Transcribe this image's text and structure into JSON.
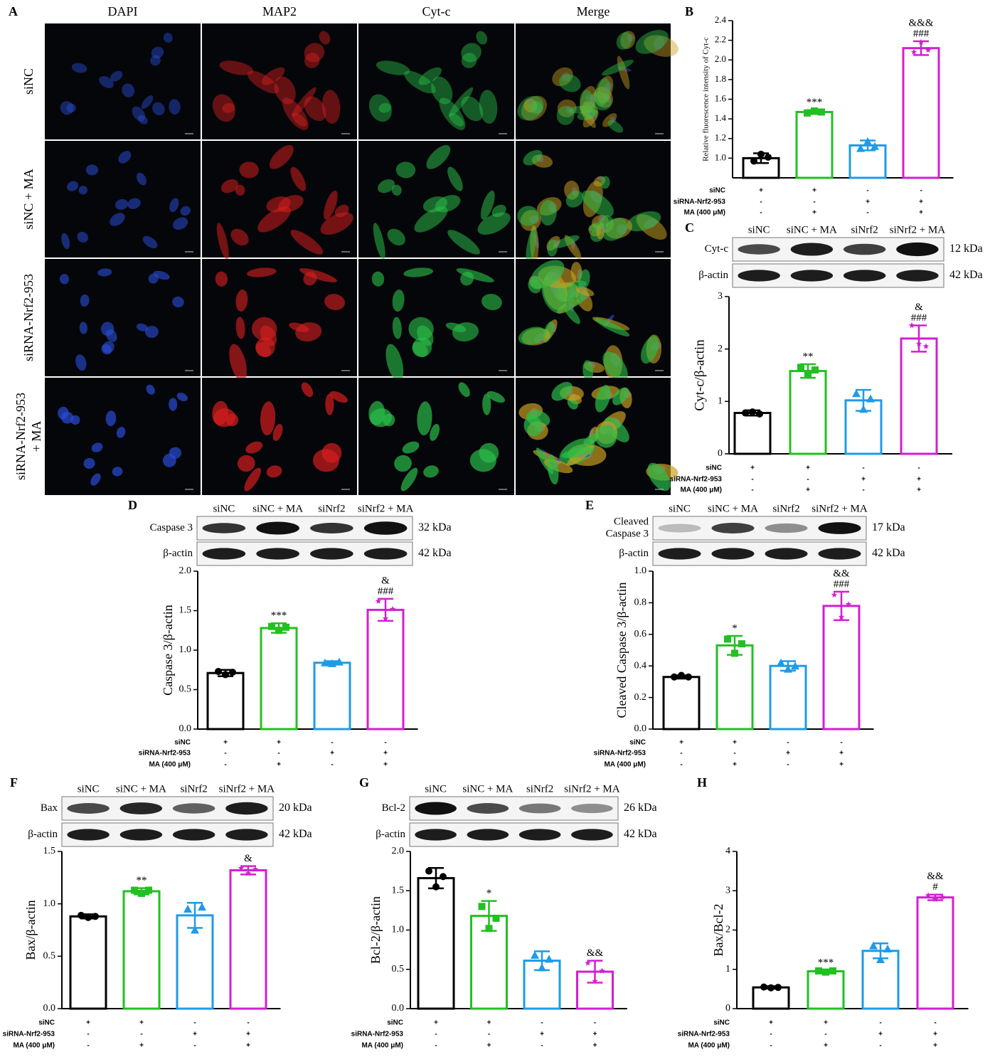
{
  "panel_a": {
    "label": "A",
    "columns": [
      "DAPI",
      "MAP2",
      "Cyt-c",
      "Merge"
    ],
    "rows": [
      [
        "siNC"
      ],
      [
        "siNC + MA"
      ],
      [
        "siRNA-Nrf2-953"
      ],
      [
        "siRNA-Nrf2-953",
        "+ MA"
      ]
    ]
  },
  "chart_data": [
    {
      "type": "bar",
      "label": "B",
      "y_label": "Relative fluorescence intensity of Cyt-c",
      "colors": [
        "#000000",
        "#22c022",
        "#1e9be8",
        "#d21fd2"
      ],
      "values": [
        1.0,
        1.47,
        1.13,
        2.12
      ],
      "errors": [
        0.05,
        0.02,
        0.05,
        0.07
      ],
      "points": [
        [
          0.97,
          1.04,
          1.01
        ],
        [
          1.46,
          1.48,
          1.47
        ],
        [
          1.1,
          1.17,
          1.12
        ],
        [
          2.08,
          2.18,
          2.1
        ]
      ],
      "annotations": [
        [],
        [
          "***"
        ],
        [],
        [
          "&&&",
          "###"
        ]
      ],
      "ylim": [
        0.8,
        2.4
      ],
      "yticks": [
        {
          "value": 1.0,
          "label": "1.0"
        },
        1.2,
        1.4,
        1.6,
        1.8,
        {
          "value": 2.0,
          "label": "2.0"
        },
        2.2,
        2.4
      ],
      "conditions": [
        {
          "name": "siNC",
          "signs": [
            "+",
            "+",
            "-",
            "-"
          ]
        },
        {
          "name": "siRNA-Nrf2-953",
          "signs": [
            "-",
            "-",
            "+",
            "+"
          ]
        },
        {
          "name": "MA (400 μM)",
          "signs": [
            "-",
            "+",
            "-",
            "+"
          ]
        }
      ]
    },
    {
      "type": "bar",
      "label": "C",
      "y_label": "Cyt-c/β-actin",
      "colors": [
        "#000000",
        "#22c022",
        "#1e9be8",
        "#d21fd2"
      ],
      "values": [
        0.78,
        1.58,
        1.02,
        2.2
      ],
      "errors": [
        0.05,
        0.13,
        0.2,
        0.25
      ],
      "points": [
        [
          0.78,
          0.8,
          0.76
        ],
        [
          1.65,
          1.5,
          1.6
        ],
        [
          1.15,
          0.85,
          1.05
        ],
        [
          2.45,
          2.1,
          2.05
        ]
      ],
      "annotations": [
        [],
        [
          "**"
        ],
        [],
        [
          "&",
          "###"
        ]
      ],
      "ylim": [
        0,
        3
      ],
      "yticks": [
        0,
        1,
        2,
        3
      ],
      "conditions": [
        {
          "name": "siNC",
          "signs": [
            "+",
            "+",
            "-",
            "-"
          ]
        },
        {
          "name": "siRNA-Nrf2-953",
          "signs": [
            "-",
            "-",
            "+",
            "+"
          ]
        },
        {
          "name": "MA (400 μM)",
          "signs": [
            "-",
            "+",
            "-",
            "+"
          ]
        }
      ],
      "blot": {
        "lanes": [
          "siNC",
          "siNC + MA",
          "siNrf2",
          "siNrf2 + MA"
        ],
        "rows": [
          {
            "name": "Cyt-c",
            "kda": "12 kDa"
          },
          {
            "name": "β-actin",
            "kda": "42 kDa"
          }
        ]
      }
    },
    {
      "type": "bar",
      "label": "D",
      "y_label": "Caspase 3/β-actin",
      "colors": [
        "#000000",
        "#22c022",
        "#1e9be8",
        "#d21fd2"
      ],
      "values": [
        0.71,
        1.28,
        0.84,
        1.51
      ],
      "errors": [
        0.04,
        0.06,
        0.02,
        0.14
      ],
      "points": [
        [
          0.73,
          0.69,
          0.72
        ],
        [
          1.3,
          1.25,
          1.29
        ],
        [
          0.84,
          0.83,
          0.85
        ],
        [
          1.62,
          1.4,
          1.52
        ]
      ],
      "annotations": [
        [],
        [
          "***"
        ],
        [],
        [
          "&",
          "###"
        ]
      ],
      "ylim": [
        0,
        2
      ],
      "yticks": [
        {
          "value": 0,
          "label": "0.0"
        },
        0.5,
        {
          "value": 1,
          "label": "1.0"
        },
        1.5,
        {
          "value": 2,
          "label": "2.0"
        }
      ],
      "conditions": [
        {
          "name": "siNC",
          "signs": [
            "+",
            "+",
            "-",
            "-"
          ]
        },
        {
          "name": "siRNA-Nrf2-953",
          "signs": [
            "-",
            "-",
            "+",
            "+"
          ]
        },
        {
          "name": "MA (400 μM)",
          "signs": [
            "-",
            "+",
            "-",
            "+"
          ]
        }
      ],
      "blot": {
        "lanes": [
          "siNC",
          "siNC + MA",
          "siNrf2",
          "siNrf2 + MA"
        ],
        "rows": [
          {
            "name": "Caspase 3",
            "kda": "32 kDa"
          },
          {
            "name": "β-actin",
            "kda": "42 kDa"
          }
        ]
      }
    },
    {
      "type": "bar",
      "label": "E",
      "y_label": "Cleaved Caspase 3/β-actin",
      "colors": [
        "#000000",
        "#22c022",
        "#1e9be8",
        "#d21fd2"
      ],
      "values": [
        0.33,
        0.53,
        0.4,
        0.78
      ],
      "errors": [
        0.01,
        0.06,
        0.03,
        0.09
      ],
      "points": [
        [
          0.33,
          0.34,
          0.33
        ],
        [
          0.57,
          0.48,
          0.54
        ],
        [
          0.42,
          0.38,
          0.4
        ],
        [
          0.85,
          0.71,
          0.79
        ]
      ],
      "annotations": [
        [],
        [
          "*"
        ],
        [],
        [
          "&&",
          "###"
        ]
      ],
      "ylim": [
        0,
        1
      ],
      "yticks": [
        {
          "value": 0,
          "label": "0.0"
        },
        0.2,
        0.4,
        0.6,
        0.8,
        {
          "value": 1,
          "label": "1.0"
        }
      ],
      "conditions": [
        {
          "name": "siNC",
          "signs": [
            "+",
            "+",
            "-",
            "-"
          ]
        },
        {
          "name": "siRNA-Nrf2-953",
          "signs": [
            "-",
            "-",
            "+",
            "+"
          ]
        },
        {
          "name": "MA (400 μM)",
          "signs": [
            "-",
            "+",
            "-",
            "+"
          ]
        }
      ],
      "blot": {
        "lanes": [
          "siNC",
          "siNC + MA",
          "siNrf2",
          "siNrf2 + MA"
        ],
        "rows": [
          {
            "name": [
              "Cleaved",
              "Caspase 3"
            ],
            "kda": "17 kDa"
          },
          {
            "name": "β-actin",
            "kda": "42 kDa"
          }
        ]
      }
    },
    {
      "type": "bar",
      "label": "F",
      "y_label": "Bax/β-actin",
      "colors": [
        "#000000",
        "#22c022",
        "#1e9be8",
        "#d21fd2"
      ],
      "values": [
        0.88,
        1.12,
        0.89,
        1.32
      ],
      "errors": [
        0.02,
        0.03,
        0.12,
        0.04
      ],
      "points": [
        [
          0.89,
          0.87,
          0.88
        ],
        [
          1.13,
          1.1,
          1.13
        ],
        [
          0.95,
          0.75,
          0.97
        ],
        [
          1.34,
          1.29,
          1.33
        ]
      ],
      "annotations": [
        [],
        [
          "**"
        ],
        [],
        [
          "&"
        ]
      ],
      "ylim": [
        0,
        1.5
      ],
      "yticks": [
        {
          "value": 0,
          "label": "0.0"
        },
        0.5,
        {
          "value": 1,
          "label": "1.0"
        },
        1.5
      ],
      "conditions": [
        {
          "name": "siNC",
          "signs": [
            "+",
            "+",
            "-",
            "-"
          ]
        },
        {
          "name": "siRNA-Nrf2-953",
          "signs": [
            "-",
            "-",
            "+",
            "+"
          ]
        },
        {
          "name": "MA (400 μM)",
          "signs": [
            "-",
            "+",
            "-",
            "+"
          ]
        }
      ],
      "blot": {
        "lanes": [
          "siNC",
          "siNC + MA",
          "siNrf2",
          "siNrf2 + MA"
        ],
        "rows": [
          {
            "name": "Bax",
            "kda": "20 kDa"
          },
          {
            "name": "β-actin",
            "kda": "42 kDa"
          }
        ]
      }
    },
    {
      "type": "bar",
      "label": "G",
      "y_label": "Bcl-2/β-actin",
      "colors": [
        "#000000",
        "#22c022",
        "#1e9be8",
        "#d21fd2"
      ],
      "values": [
        1.66,
        1.18,
        0.61,
        0.47
      ],
      "errors": [
        0.13,
        0.19,
        0.12,
        0.14
      ],
      "points": [
        [
          1.75,
          1.55,
          1.68
        ],
        [
          1.3,
          1.02,
          1.15
        ],
        [
          0.68,
          0.52,
          0.63
        ],
        [
          0.58,
          0.35,
          0.48
        ]
      ],
      "annotations": [
        [],
        [
          "*"
        ],
        [],
        [
          "&&"
        ]
      ],
      "ylim": [
        0,
        2
      ],
      "yticks": [
        {
          "value": 0,
          "label": "0.0"
        },
        0.5,
        {
          "value": 1,
          "label": "1.0"
        },
        1.5,
        {
          "value": 2,
          "label": "2.0"
        }
      ],
      "conditions": [
        {
          "name": "siNC",
          "signs": [
            "+",
            "+",
            "-",
            "-"
          ]
        },
        {
          "name": "siRNA-Nrf2-953",
          "signs": [
            "-",
            "-",
            "+",
            "+"
          ]
        },
        {
          "name": "MA (400 μM)",
          "signs": [
            "-",
            "+",
            "-",
            "+"
          ]
        }
      ],
      "blot": {
        "lanes": [
          "siNC",
          "siNC + MA",
          "siNrf2",
          "siNrf2 + MA"
        ],
        "rows": [
          {
            "name": "Bcl-2",
            "kda": "26 kDa"
          },
          {
            "name": "β-actin",
            "kda": "42 kDa"
          }
        ]
      }
    },
    {
      "type": "bar",
      "label": "H",
      "y_label": "Bax/Bcl-2",
      "colors": [
        "#000000",
        "#22c022",
        "#1e9be8",
        "#d21fd2"
      ],
      "values": [
        0.54,
        0.95,
        1.47,
        2.83
      ],
      "errors": [
        0.03,
        0.03,
        0.19,
        0.07
      ],
      "points": [
        [
          0.55,
          0.53,
          0.54
        ],
        [
          0.96,
          0.93,
          0.96
        ],
        [
          1.6,
          1.25,
          1.52
        ],
        [
          2.88,
          2.78,
          2.84
        ]
      ],
      "annotations": [
        [],
        [
          "***"
        ],
        [],
        [
          "&&",
          "#"
        ]
      ],
      "ylim": [
        0,
        4
      ],
      "yticks": [
        0,
        1,
        2,
        3,
        4
      ],
      "conditions": [
        {
          "name": "siNC",
          "signs": [
            "+",
            "+",
            "-",
            "-"
          ]
        },
        {
          "name": "siRNA-Nrf2-953",
          "signs": [
            "-",
            "-",
            "+",
            "+"
          ]
        },
        {
          "name": "MA (400 μM)",
          "signs": [
            "-",
            "+",
            "-",
            "+"
          ]
        }
      ]
    }
  ]
}
